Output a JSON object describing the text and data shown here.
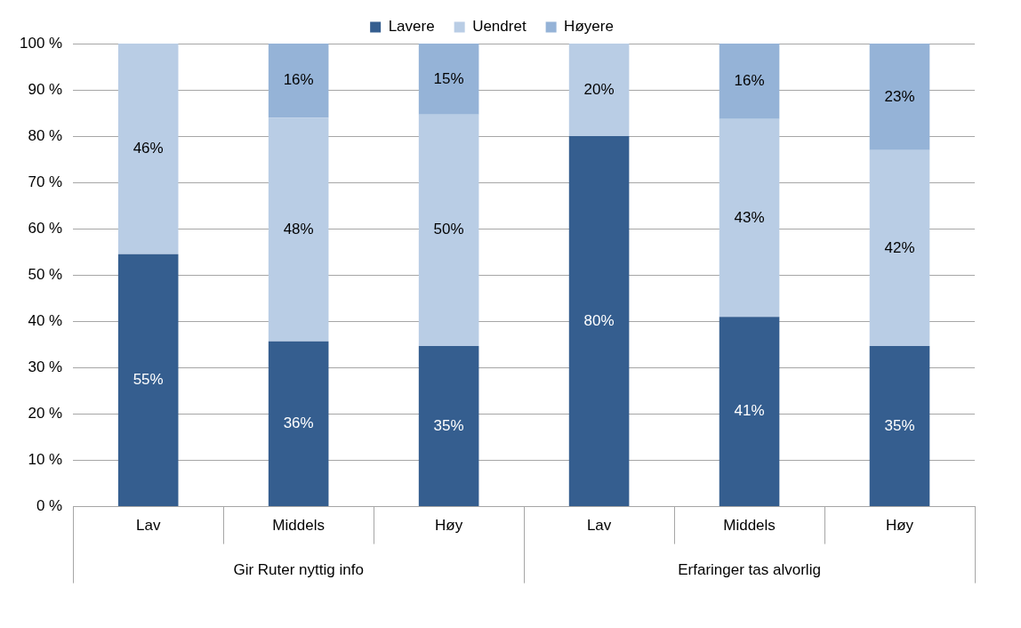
{
  "chart_data": {
    "type": "bar",
    "stacked": true,
    "categories": [
      "Lav",
      "Middels",
      "Høy",
      "Lav",
      "Middels",
      "Høy"
    ],
    "series": [
      {
        "name": "Lavere",
        "color": "#355e8f",
        "values": [
          54.5,
          35.7,
          34.7,
          80,
          41,
          34.7
        ],
        "value_labels": [
          "55%",
          "36%",
          "35%",
          "80%",
          "41%",
          "35%"
        ]
      },
      {
        "name": "Uendret",
        "color": "#b9cde5",
        "values": [
          45.5,
          48.3,
          50,
          20,
          42.7,
          42.3
        ],
        "value_labels": [
          "46%",
          "48%",
          "50%",
          "20%",
          "43%",
          "42%"
        ]
      },
      {
        "name": "Høyere",
        "color": "#95b3d7",
        "values": [
          null,
          16,
          15.3,
          null,
          16.3,
          23
        ],
        "value_labels": [
          null,
          "16%",
          "15%",
          null,
          "16%",
          "23%"
        ]
      }
    ],
    "ylim": [
      0,
      100
    ],
    "yticks": [
      {
        "value": 0,
        "label": "0 %"
      },
      {
        "value": 10,
        "label": "10 %"
      },
      {
        "value": 20,
        "label": "20 %"
      },
      {
        "value": 30,
        "label": "30 %"
      },
      {
        "value": 40,
        "label": "40 %"
      },
      {
        "value": 50,
        "label": "50 %"
      },
      {
        "value": 60,
        "label": "60 %"
      },
      {
        "value": 70,
        "label": "70 %"
      },
      {
        "value": 80,
        "label": "80 %"
      },
      {
        "value": 90,
        "label": "90 %"
      },
      {
        "value": 100,
        "label": "100 %"
      }
    ],
    "grid": "y",
    "legend": "top",
    "annotations": [
      "Gir Ruter nyttig info",
      "Erfaringer tas alvorlig"
    ]
  }
}
